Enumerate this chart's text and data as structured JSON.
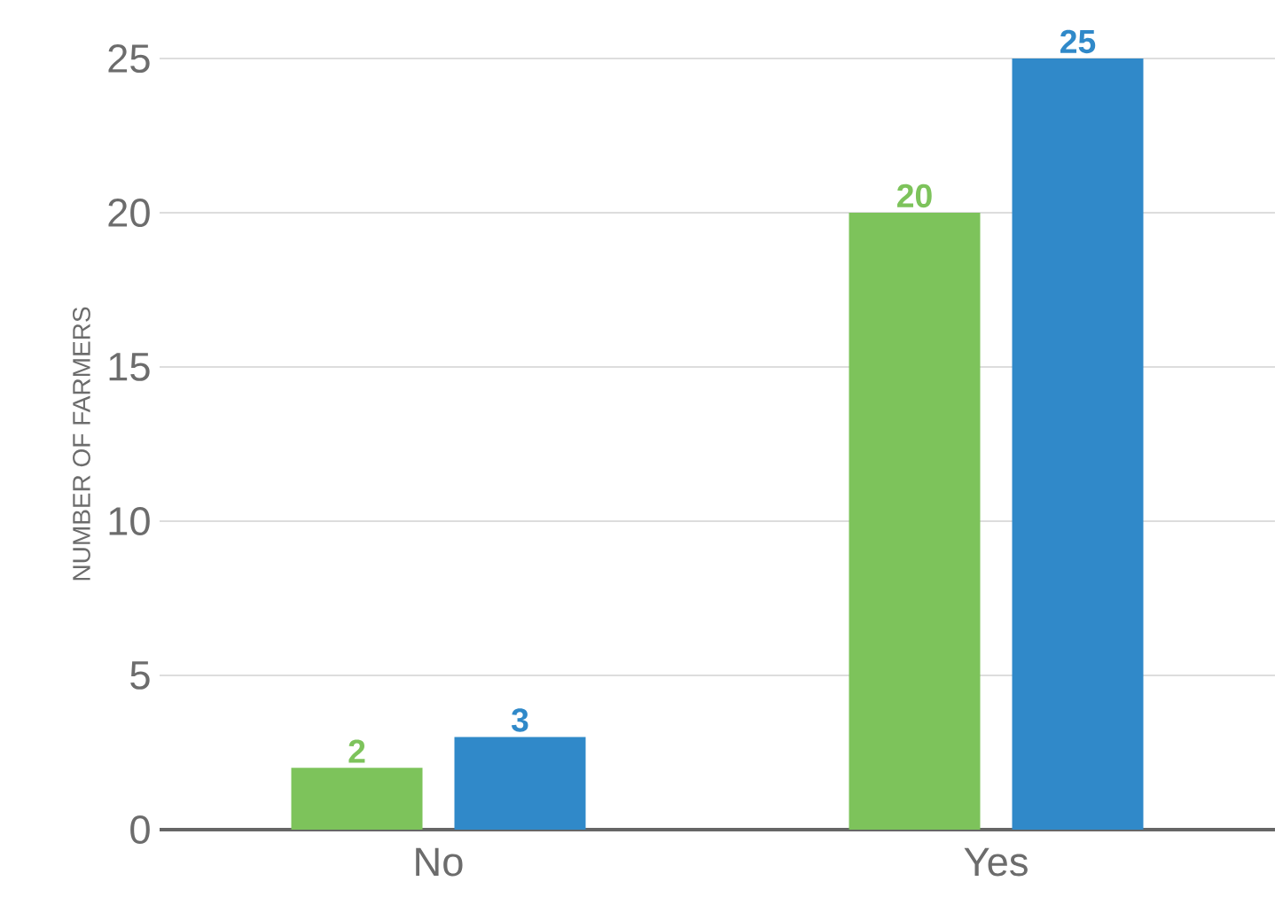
{
  "chart_data": {
    "type": "bar",
    "ylabel": "NUMBER OF FARMERS",
    "categories": [
      "No",
      "Yes"
    ],
    "series": [
      {
        "color": "#7dc35b",
        "values": [
          2,
          20
        ]
      },
      {
        "color": "#3089c9",
        "values": [
          3,
          25
        ]
      }
    ],
    "ylim": [
      0,
      25
    ],
    "yticks": [
      0,
      5,
      10,
      15,
      20,
      25
    ],
    "grid": "y",
    "data_labels": true
  }
}
